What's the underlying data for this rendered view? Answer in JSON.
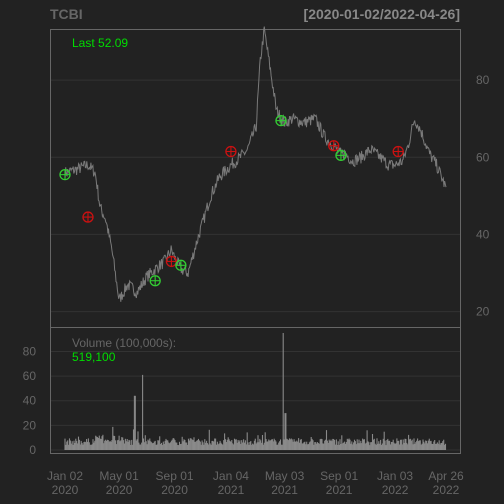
{
  "header": {
    "symbol": "TCBI",
    "date_range": "[2020-01-02/2022-04-26]"
  },
  "colors": {
    "background": "#222222",
    "panel_border": "#666666",
    "grid": "#333333",
    "price_line": "#7a7a7a",
    "volume_bars": "#8a8a8a",
    "text_muted": "#666666",
    "axis_text": "#888888",
    "accent_green": "#00dd00",
    "buy_marker": "#33cc33",
    "sell_marker": "#cc1111"
  },
  "chart_data": [
    {
      "type": "line",
      "title": "TCBI",
      "subtitle": "[2020-01-02/2022-04-26]",
      "legend_text": "Last 52.09",
      "last_value": 52.09,
      "ylim": [
        16,
        93
      ],
      "yticks": [
        20,
        40,
        60,
        80
      ],
      "grid": true,
      "x_dates": [
        "2020-01-02",
        "2020-02-01",
        "2020-02-22",
        "2020-03-09",
        "2020-03-20",
        "2020-04-01",
        "2020-04-15",
        "2020-05-01",
        "2020-05-20",
        "2020-06-10",
        "2020-07-01",
        "2020-07-20",
        "2020-08-10",
        "2020-08-25",
        "2020-09-01",
        "2020-09-15",
        "2020-10-01",
        "2020-10-20",
        "2020-11-05",
        "2020-11-20",
        "2020-12-10",
        "2021-01-04",
        "2021-01-25",
        "2021-02-10",
        "2021-03-01",
        "2021-03-10",
        "2021-03-19",
        "2021-04-05",
        "2021-04-15",
        "2021-05-03",
        "2021-05-20",
        "2021-06-15",
        "2021-07-10",
        "2021-08-01",
        "2021-08-20",
        "2021-09-01",
        "2021-09-15",
        "2021-10-01",
        "2021-10-20",
        "2021-11-10",
        "2021-12-01",
        "2021-12-20",
        "2022-01-03",
        "2022-01-20",
        "2022-02-01",
        "2022-02-15",
        "2022-03-01",
        "2022-03-20",
        "2022-04-05",
        "2022-04-26"
      ],
      "price": [
        56,
        57,
        58,
        56,
        47,
        44,
        36,
        23,
        27,
        25,
        29,
        31,
        33,
        36,
        34,
        31,
        30,
        38,
        44,
        50,
        55,
        58,
        60,
        62,
        68,
        85,
        93,
        80,
        72,
        69,
        70,
        69,
        70,
        65,
        63,
        61,
        61,
        59,
        60,
        62,
        60,
        58,
        58,
        59,
        63,
        70,
        67,
        61,
        58,
        52
      ],
      "signals": [
        {
          "date": "2020-01-02",
          "value": 55.5,
          "kind": "buy"
        },
        {
          "date": "2020-02-22",
          "value": 44.5,
          "kind": "sell"
        },
        {
          "date": "2020-07-20",
          "value": 28.0,
          "kind": "buy"
        },
        {
          "date": "2020-08-25",
          "value": 33.0,
          "kind": "sell"
        },
        {
          "date": "2020-09-15",
          "value": 32.0,
          "kind": "buy"
        },
        {
          "date": "2021-01-04",
          "value": 61.5,
          "kind": "sell"
        },
        {
          "date": "2021-04-25",
          "value": 69.5,
          "kind": "buy"
        },
        {
          "date": "2021-08-20",
          "value": 63.0,
          "kind": "sell"
        },
        {
          "date": "2021-09-05",
          "value": 60.5,
          "kind": "buy"
        },
        {
          "date": "2022-01-10",
          "value": 61.5,
          "kind": "sell"
        }
      ]
    },
    {
      "type": "bar",
      "legend_text": "Volume (100,000s):",
      "last_value_text": "519,100",
      "ylim": [
        0,
        95
      ],
      "yticks": [
        0,
        20,
        40,
        60,
        80
      ],
      "grid": true,
      "spikes": [
        {
          "date": "2020-06-05",
          "value": 44
        },
        {
          "date": "2020-06-22",
          "value": 61
        },
        {
          "date": "2021-04-30",
          "value": 95
        },
        {
          "date": "2021-05-05",
          "value": 30
        }
      ],
      "typical_range": [
        4,
        14
      ]
    }
  ],
  "x_axis": {
    "tick_labels": [
      {
        "date": "2020-01-02",
        "line1": "Jan 02",
        "line2": "2020"
      },
      {
        "date": "2020-05-01",
        "line1": "May 01",
        "line2": "2020"
      },
      {
        "date": "2020-09-01",
        "line1": "Sep 01",
        "line2": "2020"
      },
      {
        "date": "2021-01-04",
        "line1": "Jan 04",
        "line2": "2021"
      },
      {
        "date": "2021-05-03",
        "line1": "May 03",
        "line2": "2021"
      },
      {
        "date": "2021-09-01",
        "line1": "Sep 01",
        "line2": "2021"
      },
      {
        "date": "2022-01-03",
        "line1": "Jan 03",
        "line2": "2022"
      },
      {
        "date": "2022-04-26",
        "line1": "Apr 26",
        "line2": "2022"
      }
    ]
  }
}
